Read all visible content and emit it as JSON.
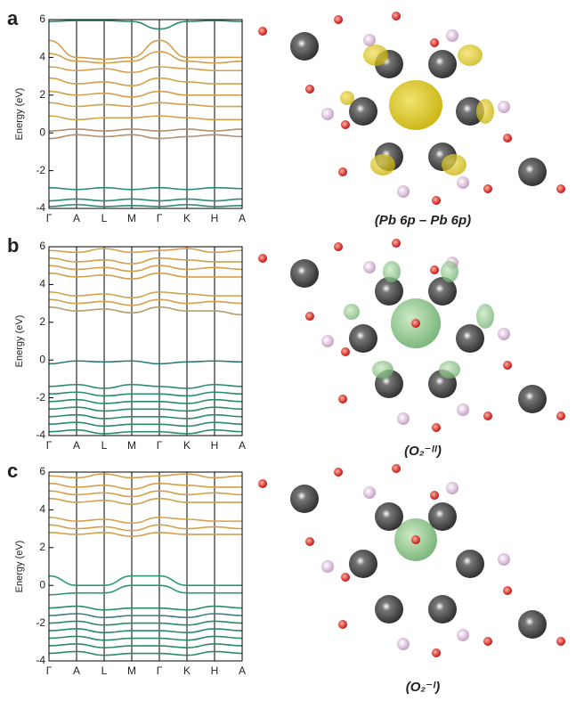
{
  "chart_data": [
    {
      "type": "line",
      "panel_label": "a",
      "caption": "(Pb 6p – Pb 6p)",
      "y_label": "Energy (eV)",
      "categories": [
        "Γ",
        "A",
        "L",
        "M",
        "Γ",
        "K",
        "H",
        "A"
      ],
      "ylim": [
        -4,
        6
      ],
      "yticks": [
        -4,
        -2,
        0,
        2,
        4,
        6
      ],
      "series": [
        {
          "color": "#2a8a6e",
          "values": [
            5.9,
            5.95,
            5.95,
            5.9,
            5.5,
            5.9,
            5.95,
            5.9
          ]
        },
        {
          "color": "#d4a04a",
          "values": [
            4.9,
            4.0,
            3.9,
            4.0,
            4.9,
            4.0,
            4.0,
            4.0
          ]
        },
        {
          "color": "#d4a04a",
          "values": [
            4.2,
            3.8,
            3.7,
            3.8,
            4.3,
            3.8,
            3.7,
            3.8
          ]
        },
        {
          "color": "#d4a04a",
          "values": [
            3.5,
            3.3,
            3.4,
            3.2,
            3.5,
            3.4,
            3.3,
            3.3
          ]
        },
        {
          "color": "#d4a04a",
          "values": [
            2.9,
            2.6,
            2.7,
            2.5,
            2.9,
            2.7,
            2.6,
            2.6
          ]
        },
        {
          "color": "#d4a04a",
          "values": [
            2.2,
            2.0,
            2.1,
            1.9,
            2.2,
            2.0,
            2.0,
            2.0
          ]
        },
        {
          "color": "#d4a04a",
          "values": [
            1.6,
            1.4,
            1.5,
            1.4,
            1.6,
            1.5,
            1.4,
            1.4
          ]
        },
        {
          "color": "#d4a04a",
          "values": [
            0.9,
            0.7,
            0.8,
            0.8,
            0.9,
            0.8,
            0.7,
            0.7
          ]
        },
        {
          "color": "#b09070",
          "values": [
            0.1,
            0.2,
            0.1,
            0.2,
            0.1,
            0.2,
            0.1,
            0.2
          ]
        },
        {
          "color": "#b09070",
          "values": [
            -0.3,
            -0.1,
            -0.2,
            -0.1,
            -0.3,
            -0.2,
            -0.1,
            -0.2
          ]
        },
        {
          "color": "#2a8a7a",
          "values": [
            -2.9,
            -3.0,
            -2.9,
            -3.0,
            -2.9,
            -3.0,
            -2.9,
            -2.95
          ]
        },
        {
          "color": "#2a8a7a",
          "values": [
            -3.6,
            -3.5,
            -3.6,
            -3.5,
            -3.6,
            -3.5,
            -3.6,
            -3.5
          ]
        },
        {
          "color": "#2a8a7a",
          "values": [
            -3.9,
            -3.8,
            -3.9,
            -3.85,
            -3.9,
            -3.8,
            -3.9,
            -3.85
          ]
        }
      ]
    },
    {
      "type": "line",
      "panel_label": "b",
      "caption": "(O₂⁻ᴵᴵ)",
      "y_label": "Energy (eV)",
      "categories": [
        "Γ",
        "A",
        "L",
        "M",
        "Γ",
        "K",
        "H",
        "A"
      ],
      "ylim": [
        -4,
        6
      ],
      "yticks": [
        -4,
        -2,
        0,
        2,
        4,
        6
      ],
      "series": [
        {
          "color": "#d4a04a",
          "values": [
            5.8,
            5.7,
            5.9,
            5.7,
            5.8,
            5.9,
            5.7,
            5.8
          ]
        },
        {
          "color": "#d4a04a",
          "values": [
            5.4,
            5.2,
            5.3,
            5.1,
            5.4,
            5.3,
            5.2,
            5.2
          ]
        },
        {
          "color": "#d4a04a",
          "values": [
            5.0,
            4.8,
            4.9,
            4.7,
            5.0,
            4.8,
            4.9,
            4.8
          ]
        },
        {
          "color": "#d4a04a",
          "values": [
            4.6,
            4.4,
            4.5,
            4.3,
            4.6,
            4.4,
            4.4,
            4.4
          ]
        },
        {
          "color": "#d4a04a",
          "values": [
            3.6,
            3.4,
            3.5,
            3.3,
            3.6,
            3.5,
            3.4,
            3.4
          ]
        },
        {
          "color": "#d4a04a",
          "values": [
            3.2,
            3.0,
            3.1,
            2.9,
            3.2,
            3.0,
            3.1,
            3.0
          ]
        },
        {
          "color": "#b0a070",
          "values": [
            2.8,
            2.6,
            2.7,
            2.5,
            2.8,
            2.6,
            2.6,
            2.4
          ]
        },
        {
          "color": "#2a7a6e",
          "values": [
            -0.2,
            -0.05,
            -0.1,
            -0.05,
            -0.2,
            -0.1,
            -0.05,
            -0.1
          ]
        },
        {
          "color": "#2a8a6e",
          "values": [
            -1.4,
            -1.3,
            -1.5,
            -1.3,
            -1.4,
            -1.5,
            -1.3,
            -1.4
          ]
        },
        {
          "color": "#2a8a6e",
          "values": [
            -1.8,
            -1.7,
            -1.9,
            -1.8,
            -1.8,
            -1.9,
            -1.7,
            -1.8
          ]
        },
        {
          "color": "#2a8a6e",
          "values": [
            -2.2,
            -2.1,
            -2.3,
            -2.2,
            -2.2,
            -2.3,
            -2.1,
            -2.2
          ]
        },
        {
          "color": "#2a8a6e",
          "values": [
            -2.6,
            -2.5,
            -2.7,
            -2.6,
            -2.6,
            -2.7,
            -2.5,
            -2.6
          ]
        },
        {
          "color": "#2a8a6e",
          "values": [
            -3.0,
            -2.9,
            -3.1,
            -3.0,
            -3.0,
            -3.1,
            -2.9,
            -3.0
          ]
        },
        {
          "color": "#2a8a6e",
          "values": [
            -3.4,
            -3.3,
            -3.5,
            -3.4,
            -3.4,
            -3.5,
            -3.3,
            -3.4
          ]
        },
        {
          "color": "#2a8a6e",
          "values": [
            -3.8,
            -3.7,
            -3.9,
            -3.8,
            -3.8,
            -3.9,
            -3.7,
            -3.8
          ]
        }
      ]
    },
    {
      "type": "line",
      "panel_label": "c",
      "caption": "(O₂⁻ᴵ)",
      "y_label": "Energy (eV)",
      "categories": [
        "Γ",
        "A",
        "L",
        "M",
        "Γ",
        "K",
        "H",
        "A"
      ],
      "ylim": [
        -4,
        6
      ],
      "yticks": [
        -4,
        -2,
        0,
        2,
        4,
        6
      ],
      "series": [
        {
          "color": "#d4a04a",
          "values": [
            5.8,
            5.7,
            5.9,
            5.7,
            5.8,
            5.9,
            5.7,
            5.8
          ]
        },
        {
          "color": "#d4a04a",
          "values": [
            5.4,
            5.2,
            5.3,
            5.1,
            5.4,
            5.3,
            5.2,
            5.2
          ]
        },
        {
          "color": "#d4a04a",
          "values": [
            5.0,
            4.8,
            4.9,
            4.7,
            5.0,
            4.8,
            4.9,
            4.8
          ]
        },
        {
          "color": "#d4a04a",
          "values": [
            4.6,
            4.4,
            4.5,
            4.3,
            4.6,
            4.4,
            4.4,
            4.4
          ]
        },
        {
          "color": "#d4a04a",
          "values": [
            3.6,
            3.4,
            3.5,
            3.3,
            3.6,
            3.5,
            3.4,
            3.4
          ]
        },
        {
          "color": "#d4a04a",
          "values": [
            3.2,
            3.0,
            3.1,
            2.9,
            3.2,
            3.0,
            3.1,
            3.0
          ]
        },
        {
          "color": "#d4a04a",
          "values": [
            2.8,
            2.7,
            2.8,
            2.6,
            2.8,
            2.7,
            2.7,
            2.7
          ]
        },
        {
          "color": "#2a9a6e",
          "values": [
            0.5,
            0.0,
            0.0,
            0.5,
            0.5,
            0.0,
            0.0,
            0.0
          ]
        },
        {
          "color": "#2a9a6e",
          "values": [
            -0.5,
            -0.4,
            -0.4,
            0.0,
            0.0,
            -0.4,
            -0.4,
            -0.4
          ]
        },
        {
          "color": "#2a8a6e",
          "values": [
            -1.2,
            -1.1,
            -1.3,
            -1.2,
            -1.2,
            -1.3,
            -1.1,
            -1.2
          ]
        },
        {
          "color": "#3a7a8a",
          "values": [
            -1.6,
            -1.5,
            -1.7,
            -1.6,
            -1.6,
            -1.7,
            -1.5,
            -1.6
          ]
        },
        {
          "color": "#2a8a6e",
          "values": [
            -2.0,
            -1.9,
            -2.1,
            -2.0,
            -2.0,
            -2.1,
            -1.9,
            -2.0
          ]
        },
        {
          "color": "#2a8a6e",
          "values": [
            -2.4,
            -2.3,
            -2.5,
            -2.4,
            -2.4,
            -2.5,
            -2.3,
            -2.4
          ]
        },
        {
          "color": "#2a8a6e",
          "values": [
            -2.8,
            -2.7,
            -2.9,
            -2.8,
            -2.8,
            -2.9,
            -2.7,
            -2.8
          ]
        },
        {
          "color": "#2a8a6e",
          "values": [
            -3.2,
            -3.1,
            -3.3,
            -3.2,
            -3.2,
            -3.3,
            -3.1,
            -3.2
          ]
        },
        {
          "color": "#2a8a6e",
          "values": [
            -3.6,
            -3.5,
            -3.7,
            -3.6,
            -3.6,
            -3.7,
            -3.5,
            -3.6
          ]
        }
      ]
    }
  ]
}
